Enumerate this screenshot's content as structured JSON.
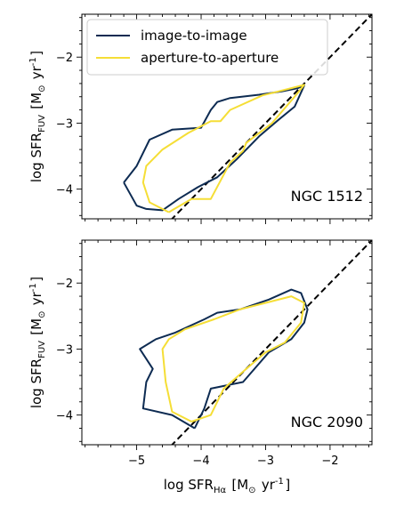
{
  "chart_data": [
    {
      "type": "line",
      "panel_label": "NGC 1512",
      "xlabel": "log SFR$_{H\\alpha}$ [M$_\\odot$ yr$^{-1}$]",
      "ylabel": "log SFR$_{FUV}$ [M$_\\odot$ yr$^{-1}$]",
      "xlim": [
        -5.85,
        -1.35
      ],
      "ylim": [
        -4.45,
        -1.35
      ],
      "xticks": [
        -5,
        -4,
        -3,
        -2
      ],
      "yticks": [
        -4,
        -3,
        -2
      ],
      "show_x_tick_labels": false,
      "grid": false,
      "legend": {
        "position": "top-left",
        "entries": [
          "image-to-image",
          "aperture-to-aperture"
        ]
      },
      "reference_line": {
        "slope": 1,
        "intercept": 0,
        "style": "dashed",
        "color": "#000000"
      },
      "series": [
        {
          "name": "image-to-image",
          "color": "#0d2b52",
          "x": [
            -5.2,
            -5.0,
            -4.8,
            -4.45,
            -4.0,
            -3.85,
            -3.75,
            -3.55,
            -3.1,
            -2.75,
            -2.5,
            -2.4,
            -2.4,
            -2.55,
            -2.8,
            -3.1,
            -3.45,
            -3.75,
            -4.05,
            -4.35,
            -4.6,
            -4.85,
            -5.0,
            -5.2
          ],
          "y": [
            -3.9,
            -3.65,
            -3.25,
            -3.1,
            -3.07,
            -2.8,
            -2.68,
            -2.62,
            -2.57,
            -2.52,
            -2.47,
            -2.43,
            -2.43,
            -2.75,
            -2.95,
            -3.2,
            -3.55,
            -3.82,
            -3.97,
            -4.15,
            -4.32,
            -4.3,
            -4.25,
            -3.9
          ]
        },
        {
          "name": "aperture-to-aperture",
          "color": "#f5de36",
          "x": [
            -4.5,
            -4.8,
            -4.9,
            -4.85,
            -4.6,
            -4.2,
            -3.85,
            -3.7,
            -3.55,
            -3.05,
            -2.6,
            -2.4,
            -2.55,
            -2.9,
            -3.3,
            -3.35,
            -3.55,
            -3.85,
            -4.15,
            -4.45,
            -4.5
          ],
          "y": [
            -4.35,
            -4.2,
            -3.9,
            -3.65,
            -3.4,
            -3.15,
            -2.97,
            -2.97,
            -2.8,
            -2.58,
            -2.47,
            -2.42,
            -2.6,
            -3.0,
            -3.3,
            -3.42,
            -3.6,
            -4.15,
            -4.15,
            -4.32,
            -4.35
          ]
        }
      ]
    },
    {
      "type": "line",
      "panel_label": "NGC 2090",
      "xlabel": "log SFR$_{H\\alpha}$ [M$_\\odot$ yr$^{-1}$]",
      "ylabel": "log SFR$_{FUV}$ [M$_\\odot$ yr$^{-1}$]",
      "xlim": [
        -5.85,
        -1.35
      ],
      "ylim": [
        -4.45,
        -1.35
      ],
      "xticks": [
        -5,
        -4,
        -3,
        -2
      ],
      "yticks": [
        -4,
        -3,
        -2
      ],
      "show_x_tick_labels": true,
      "grid": false,
      "legend": null,
      "reference_line": {
        "slope": 1,
        "intercept": 0,
        "style": "dashed",
        "color": "#000000"
      },
      "series": [
        {
          "name": "image-to-image",
          "color": "#0d2b52",
          "x": [
            -4.1,
            -4.45,
            -4.9,
            -4.85,
            -4.75,
            -4.95,
            -4.7,
            -4.4,
            -3.95,
            -3.75,
            -3.4,
            -2.95,
            -2.6,
            -2.45,
            -2.35,
            -2.4,
            -2.6,
            -2.95,
            -3.35,
            -3.85,
            -3.95,
            -4.1
          ],
          "y": [
            -4.2,
            -4.0,
            -3.9,
            -3.5,
            -3.3,
            -3.0,
            -2.85,
            -2.75,
            -2.55,
            -2.45,
            -2.4,
            -2.25,
            -2.1,
            -2.15,
            -2.4,
            -2.6,
            -2.85,
            -3.05,
            -3.5,
            -3.6,
            -3.9,
            -4.2
          ]
        },
        {
          "name": "aperture-to-aperture",
          "color": "#f5de36",
          "x": [
            -4.15,
            -4.45,
            -4.55,
            -4.6,
            -4.5,
            -4.25,
            -3.8,
            -3.4,
            -3.0,
            -2.6,
            -2.4,
            -2.45,
            -2.7,
            -3.0,
            -3.3,
            -3.65,
            -3.85,
            -4.15
          ],
          "y": [
            -4.1,
            -3.95,
            -3.5,
            -3.0,
            -2.85,
            -2.7,
            -2.55,
            -2.4,
            -2.3,
            -2.2,
            -2.3,
            -2.6,
            -2.9,
            -3.05,
            -3.3,
            -3.6,
            -4.0,
            -4.1
          ]
        }
      ]
    }
  ]
}
